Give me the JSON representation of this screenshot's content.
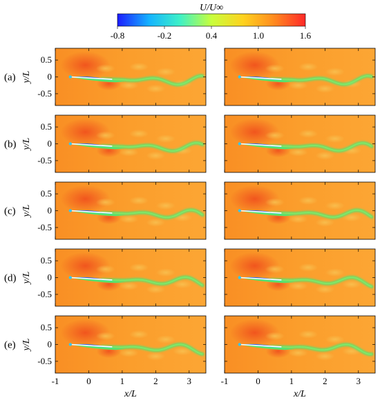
{
  "colorbar": {
    "title": "U/U∞",
    "ticks": [
      "-0.8",
      "-0.2",
      "0.4",
      "1.0",
      "1.6"
    ],
    "range": [
      -0.8,
      1.6
    ],
    "colors": [
      "#1c1cff",
      "#14b4ff",
      "#3cf0c8",
      "#c8ff3c",
      "#ffd21e",
      "#ff8c1e",
      "#ff2828"
    ]
  },
  "rows": [
    {
      "label": "(a)"
    },
    {
      "label": "(b)"
    },
    {
      "label": "(c)"
    },
    {
      "label": "(d)"
    },
    {
      "label": "(e)"
    }
  ],
  "axes": {
    "ylabel": "y/L",
    "xlabel": "x/L",
    "yticks": [
      "0.5",
      "0",
      "-0.5"
    ],
    "xticks": [
      "-1",
      "0",
      "1",
      "2",
      "3"
    ],
    "xrange": [
      -1.0,
      3.5
    ],
    "yrange": [
      -0.85,
      0.85
    ]
  },
  "colors": {
    "background": "#fb9e2c",
    "ambient": "#f7a93a",
    "nose_high": "#f0501e",
    "wake": "#55e36e",
    "body_low": "#1f2cf5",
    "body_edge": "#34c8f0",
    "body_line": "#ffffff"
  }
}
